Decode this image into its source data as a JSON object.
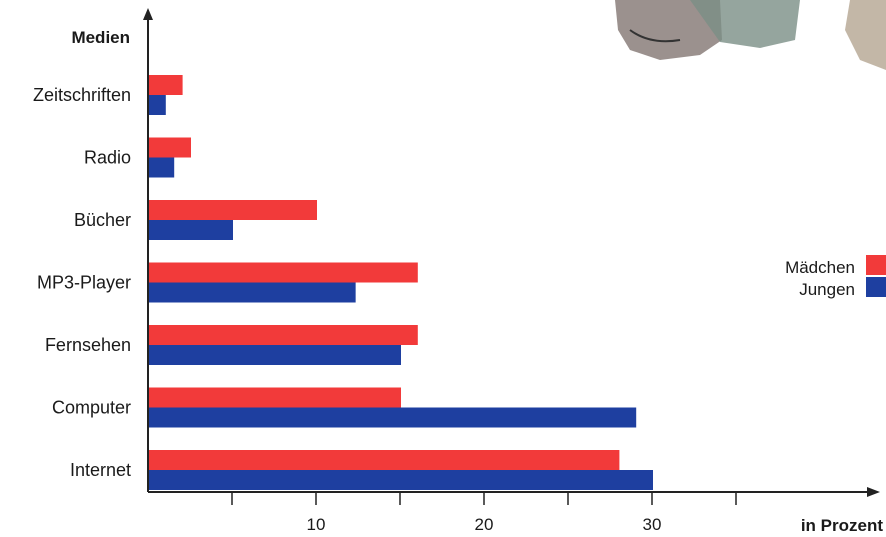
{
  "chart_data": {
    "type": "bar",
    "orientation": "horizontal",
    "ylabel": "Medien",
    "xlabel": "in Prozent",
    "categories": [
      "Zeitschriften",
      "Radio",
      "Bücher",
      "MP3-Player",
      "Fernsehen",
      "Computer",
      "Internet"
    ],
    "series": [
      {
        "name": "Mädchen",
        "color": "#f23a3a",
        "values": [
          2,
          2.5,
          10,
          16,
          16,
          15,
          28
        ]
      },
      {
        "name": "Jungen",
        "color": "#1e3fa0",
        "values": [
          1,
          1.5,
          5,
          12.3,
          15,
          29,
          30
        ]
      }
    ],
    "xticks": [
      10,
      20,
      30
    ],
    "xlim": [
      0,
      42
    ],
    "grid": false,
    "legend_position": "right"
  }
}
